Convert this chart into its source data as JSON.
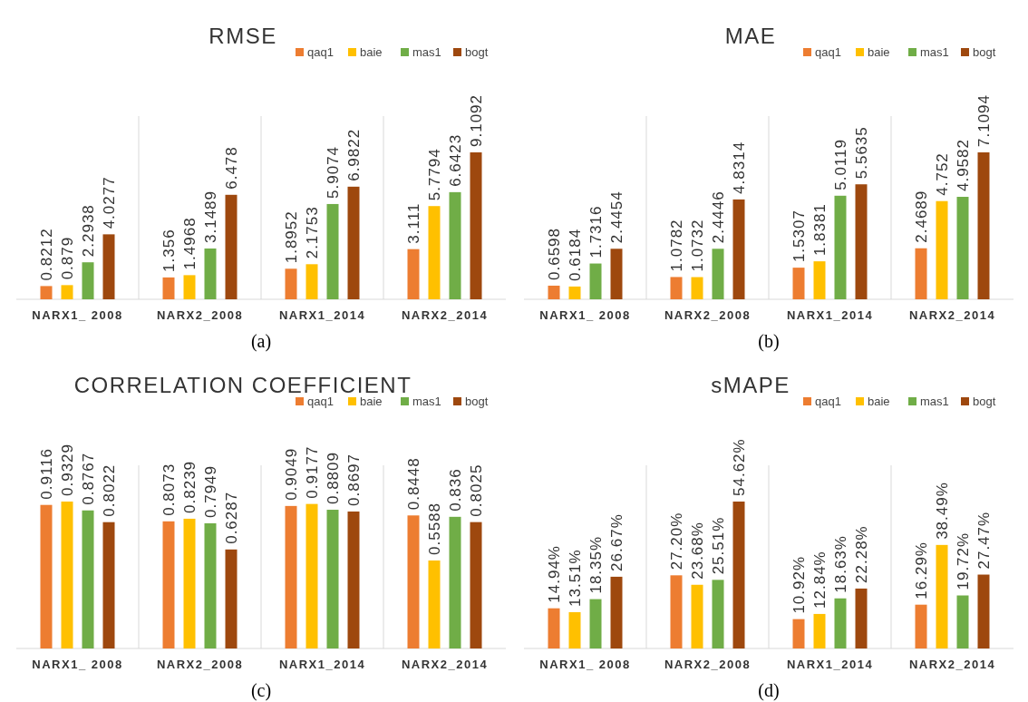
{
  "chart_data": [
    {
      "type": "bar",
      "title": "RMSE",
      "categories": [
        "NARX1_ 2008",
        "NARX2_2008",
        "NARX1_2014",
        "NARX2_2014"
      ],
      "legend": "top right",
      "data_labels": true,
      "annotations": [
        "(a)"
      ],
      "series": [
        {
          "name": "qaq1",
          "color": "#ed7d31",
          "values": [
            0.8212,
            1.356,
            1.8952,
            3.111
          ]
        },
        {
          "name": "baie",
          "color": "#ffc000",
          "values": [
            0.879,
            1.4968,
            2.1753,
            5.7794
          ]
        },
        {
          "name": "mas1",
          "color": "#70ad47",
          "values": [
            2.2938,
            3.1489,
            5.9074,
            6.6423
          ]
        },
        {
          "name": "bogt",
          "color": "#9e480e",
          "values": [
            4.0277,
            6.478,
            6.9822,
            9.1092
          ]
        }
      ]
    },
    {
      "type": "bar",
      "title": "MAE",
      "categories": [
        "NARX1_ 2008",
        "NARX2_2008",
        "NARX1_2014",
        "NARX2_2014"
      ],
      "legend": "top right",
      "data_labels": true,
      "annotations": [
        "(b)"
      ],
      "series": [
        {
          "name": "qaq1",
          "color": "#ed7d31",
          "values": [
            0.6598,
            1.0782,
            1.5307,
            2.4689
          ]
        },
        {
          "name": "baie",
          "color": "#ffc000",
          "values": [
            0.6184,
            1.0732,
            1.8381,
            4.752
          ]
        },
        {
          "name": "mas1",
          "color": "#70ad47",
          "values": [
            1.7316,
            2.4446,
            5.0119,
            4.9582
          ]
        },
        {
          "name": "bogt",
          "color": "#9e480e",
          "values": [
            2.4454,
            4.8314,
            5.5635,
            7.1094
          ]
        }
      ]
    },
    {
      "type": "bar",
      "title": "CORRELATION COEFFICIENT",
      "categories": [
        "NARX1_ 2008",
        "NARX2_2008",
        "NARX1_2014",
        "NARX2_2014"
      ],
      "legend": "top right",
      "data_labels": true,
      "annotations": [
        "(c)"
      ],
      "series": [
        {
          "name": "qaq1",
          "color": "#ed7d31",
          "values": [
            0.9116,
            0.8073,
            0.9049,
            0.8448
          ]
        },
        {
          "name": "baie",
          "color": "#ffc000",
          "values": [
            0.9329,
            0.8239,
            0.9177,
            0.5588
          ]
        },
        {
          "name": "mas1",
          "color": "#70ad47",
          "values": [
            0.8767,
            0.7949,
            0.8809,
            0.836
          ]
        },
        {
          "name": "bogt",
          "color": "#9e480e",
          "values": [
            0.8022,
            0.6287,
            0.8697,
            0.8025
          ]
        }
      ]
    },
    {
      "type": "bar",
      "title": "sMAPE",
      "categories": [
        "NARX1_ 2008",
        "NARX2_2008",
        "NARX1_2014",
        "NARX2_2014"
      ],
      "legend": "top right",
      "annotations": [
        "(d)"
      ],
      "series": [
        {
          "name": "qaq1",
          "color": "#ed7d31",
          "values": [
            14.94,
            27.2,
            10.92,
            16.29
          ],
          "value_labels": [
            "14.94%",
            "27.20%",
            "10.92%",
            "16.29%"
          ]
        },
        {
          "name": "baie",
          "color": "#ffc000",
          "values": [
            13.51,
            23.68,
            12.84,
            38.49
          ],
          "value_labels": [
            "13.51%",
            "23.68%",
            "12.84%",
            "38.49%"
          ]
        },
        {
          "name": "mas1",
          "color": "#70ad47",
          "values": [
            18.35,
            25.51,
            18.63,
            19.72
          ],
          "value_labels": [
            "18.35%",
            "25.51%",
            "18.63%",
            "19.72%"
          ]
        },
        {
          "name": "bogt",
          "color": "#9e480e",
          "values": [
            26.67,
            54.62,
            22.28,
            27.47
          ],
          "value_labels": [
            "26.67%",
            "54.62%",
            "22.28%",
            "27.47%"
          ]
        }
      ]
    }
  ]
}
